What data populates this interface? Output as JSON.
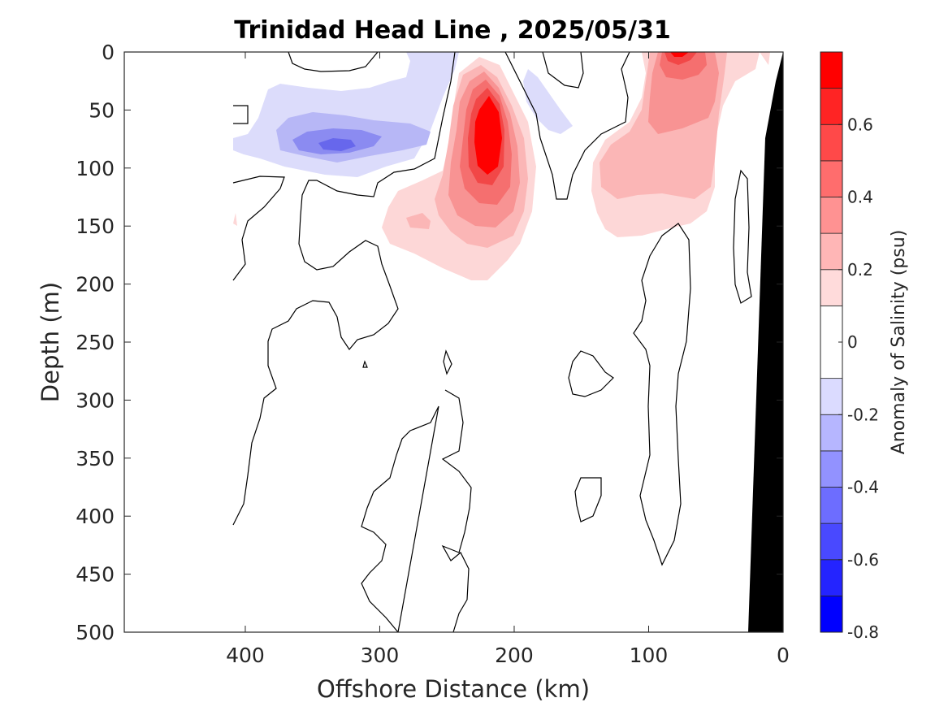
{
  "chart_data": {
    "type": "heatmap",
    "title": "Trinidad Head Line , 2025/05/31",
    "xlabel": "Offshore Distance (km)",
    "ylabel": "Depth (m)",
    "colorbar_label": "Anomaly of Salinity (psu)",
    "xlim": [
      490,
      0
    ],
    "ylim": [
      0,
      500
    ],
    "x_reversed": true,
    "y_reversed": true,
    "x_ticks": [
      400,
      300,
      200,
      100,
      0
    ],
    "y_ticks": [
      0,
      50,
      100,
      150,
      200,
      250,
      300,
      350,
      400,
      450,
      500
    ],
    "colorbar_range": [
      -0.8,
      0.8
    ],
    "colorbar_ticks": [
      "0.6",
      "0.4",
      "0.2",
      "0",
      "-0.2",
      "-0.4",
      "-0.6",
      "-0.8"
    ],
    "colorbar_tick_values": [
      0.6,
      0.4,
      0.2,
      0,
      -0.2,
      -0.4,
      -0.6,
      -0.8
    ],
    "contour_levels": [
      -0.8,
      -0.7,
      -0.6,
      -0.5,
      -0.4,
      -0.3,
      -0.2,
      -0.1,
      0.1,
      0.2,
      0.3,
      0.4,
      0.5,
      0.6,
      0.7,
      0.8
    ],
    "colors": {
      "positive_max": "#ff0000",
      "negative_max": "#0000ff",
      "neutral": "#ffffff",
      "zero_contour": "#000000",
      "bathymetry": "#000000"
    },
    "features": [
      {
        "sign": "positive",
        "peak": 0.8,
        "center_x_km": 220,
        "center_depth_m": 85
      },
      {
        "sign": "positive",
        "peak": 0.8,
        "center_x_km": 80,
        "center_depth_m": 5
      },
      {
        "sign": "positive",
        "peak": 0.3,
        "center_x_km": 85,
        "center_depth_m": 110
      },
      {
        "sign": "negative",
        "peak": -0.4,
        "center_x_km": 330,
        "center_depth_m": 80
      },
      {
        "sign": "negative",
        "peak": -0.1,
        "center_x_km": 290,
        "center_depth_m": 20
      },
      {
        "sign": "negative",
        "peak": -0.1,
        "center_x_km": 165,
        "center_depth_m": 45
      }
    ]
  }
}
